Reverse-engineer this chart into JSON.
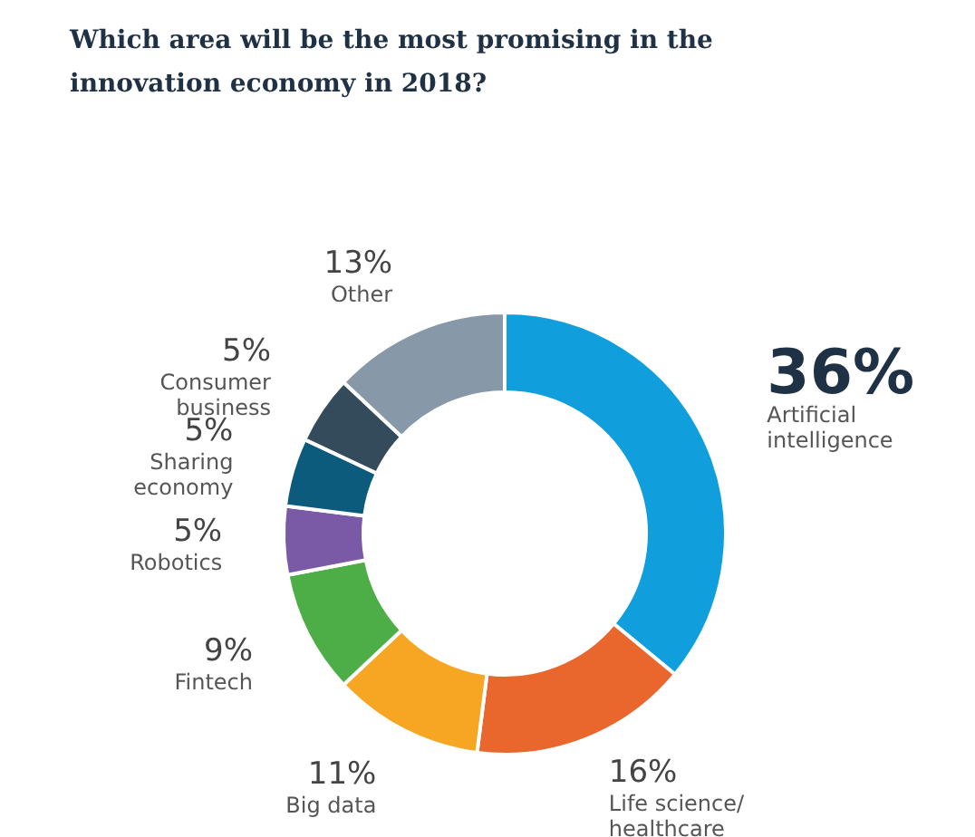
{
  "chart_data": {
    "type": "donut",
    "title": "Which area will be the most promising in the innovation economy in 2018?",
    "categories": [
      "Artificial intelligence",
      "Life science/ healthcare",
      "Big data",
      "Fintech",
      "Robotics",
      "Sharing economy",
      "Consumer business",
      "Other"
    ],
    "values": [
      36,
      16,
      11,
      9,
      5,
      5,
      5,
      13
    ],
    "value_labels": [
      "36%",
      "16%",
      "11%",
      "9%",
      "5%",
      "5%",
      "5%",
      "13%"
    ],
    "colors": [
      "#109fdc",
      "#e9662c",
      "#f6a623",
      "#4dae48",
      "#7a5aa6",
      "#0c5a7c",
      "#344b5c",
      "#8799a8"
    ]
  }
}
